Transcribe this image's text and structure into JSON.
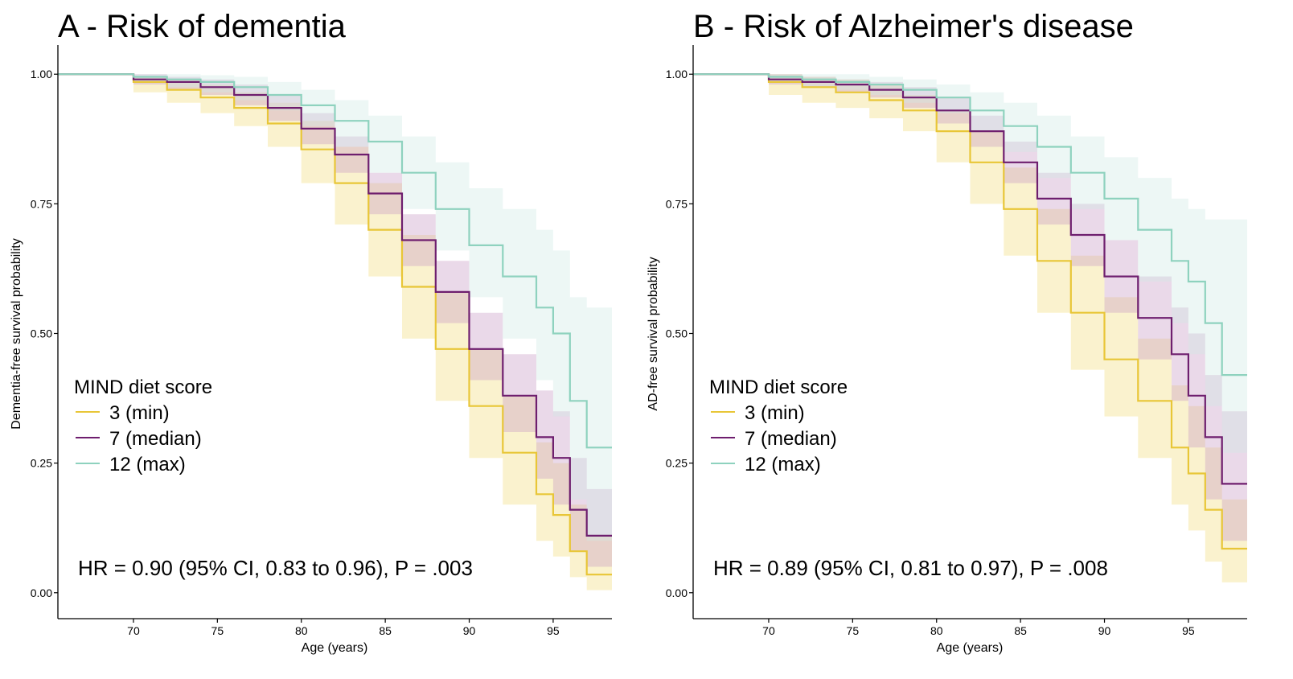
{
  "chart_data": [
    {
      "type": "line",
      "title": "A - Risk of dementia",
      "xlabel": "Age (years)",
      "ylabel": "Dementia-free survival probability",
      "xlim": [
        65.5,
        98.5
      ],
      "ylim": [
        -0.05,
        1.05
      ],
      "xticks": [
        "70",
        "75",
        "80",
        "85",
        "90",
        "95"
      ],
      "yticks": [
        "0.00",
        "0.25",
        "0.50",
        "0.75",
        "1.00"
      ],
      "legend_title": "MIND diet score",
      "annotation": "HR = 0.90 (95% CI, 0.83 to 0.96), P = .003",
      "series": [
        {
          "name": "3 (min)",
          "color": "#E8C637",
          "fill": "#F3DD7E",
          "x": [
            65.5,
            69.7,
            70.0,
            72,
            74,
            76,
            78,
            80,
            82,
            84,
            86,
            88,
            90,
            92,
            94,
            95,
            96,
            97,
            98.5
          ],
          "y": [
            1.0,
            1.0,
            0.985,
            0.97,
            0.955,
            0.935,
            0.905,
            0.855,
            0.79,
            0.7,
            0.59,
            0.47,
            0.36,
            0.27,
            0.19,
            0.15,
            0.08,
            0.035,
            0.035
          ],
          "lo": [
            1.0,
            1.0,
            0.965,
            0.945,
            0.925,
            0.9,
            0.86,
            0.79,
            0.71,
            0.61,
            0.49,
            0.37,
            0.26,
            0.17,
            0.1,
            0.07,
            0.03,
            0.005,
            0.005
          ],
          "hi": [
            1.0,
            1.0,
            0.995,
            0.99,
            0.98,
            0.965,
            0.945,
            0.91,
            0.86,
            0.79,
            0.69,
            0.58,
            0.47,
            0.38,
            0.29,
            0.25,
            0.17,
            0.11,
            0.11
          ]
        },
        {
          "name": "7 (median)",
          "color": "#6E1E6E",
          "fill": "#C79AC4",
          "x": [
            65.5,
            69.7,
            70.0,
            72,
            74,
            76,
            78,
            80,
            82,
            84,
            86,
            88,
            90,
            92,
            94,
            95,
            96,
            97,
            98.5
          ],
          "y": [
            1.0,
            1.0,
            0.99,
            0.985,
            0.975,
            0.96,
            0.935,
            0.895,
            0.845,
            0.77,
            0.68,
            0.58,
            0.47,
            0.38,
            0.3,
            0.26,
            0.16,
            0.11,
            0.11
          ],
          "lo": [
            1.0,
            1.0,
            0.98,
            0.97,
            0.96,
            0.94,
            0.91,
            0.865,
            0.81,
            0.73,
            0.63,
            0.52,
            0.41,
            0.31,
            0.22,
            0.17,
            0.08,
            0.05,
            0.05
          ],
          "hi": [
            1.0,
            1.0,
            1.0,
            0.995,
            0.99,
            0.98,
            0.96,
            0.925,
            0.88,
            0.81,
            0.73,
            0.64,
            0.54,
            0.46,
            0.39,
            0.35,
            0.26,
            0.2,
            0.2
          ]
        },
        {
          "name": "12 (max)",
          "color": "#8ED2BE",
          "fill": "#CFEAE5",
          "x": [
            65.5,
            69.7,
            70.0,
            72,
            74,
            76,
            78,
            80,
            82,
            84,
            86,
            88,
            90,
            92,
            94,
            95,
            96,
            97,
            98.5
          ],
          "y": [
            1.0,
            1.0,
            0.995,
            0.99,
            0.985,
            0.975,
            0.96,
            0.94,
            0.91,
            0.87,
            0.81,
            0.74,
            0.67,
            0.61,
            0.55,
            0.5,
            0.37,
            0.28,
            0.28
          ],
          "lo": [
            1.0,
            1.0,
            0.985,
            0.975,
            0.965,
            0.95,
            0.93,
            0.9,
            0.86,
            0.81,
            0.74,
            0.66,
            0.57,
            0.49,
            0.41,
            0.34,
            0.18,
            0.1,
            0.1
          ],
          "hi": [
            1.0,
            1.0,
            1.0,
            1.0,
            0.998,
            0.995,
            0.985,
            0.97,
            0.95,
            0.92,
            0.88,
            0.83,
            0.78,
            0.74,
            0.7,
            0.66,
            0.57,
            0.55,
            0.55
          ]
        }
      ]
    },
    {
      "type": "line",
      "title": "B - Risk of Alzheimer's disease",
      "xlabel": "Age (years)",
      "ylabel": "AD-free survival probability",
      "xlim": [
        65.5,
        98.5
      ],
      "ylim": [
        -0.05,
        1.05
      ],
      "xticks": [
        "70",
        "75",
        "80",
        "85",
        "90",
        "95"
      ],
      "yticks": [
        "0.00",
        "0.25",
        "0.50",
        "0.75",
        "1.00"
      ],
      "legend_title": "MIND diet score",
      "annotation": "HR = 0.89 (95% CI, 0.81 to 0.97), P = .008",
      "series": [
        {
          "name": "3 (min)",
          "color": "#E8C637",
          "fill": "#F3DD7E",
          "x": [
            65.5,
            69.7,
            70.0,
            72,
            74,
            76,
            78,
            80,
            82,
            84,
            86,
            88,
            90,
            92,
            94,
            95,
            96,
            97,
            98.5
          ],
          "y": [
            1.0,
            1.0,
            0.985,
            0.975,
            0.965,
            0.95,
            0.93,
            0.89,
            0.83,
            0.74,
            0.64,
            0.54,
            0.45,
            0.37,
            0.28,
            0.23,
            0.16,
            0.085,
            0.085
          ],
          "lo": [
            1.0,
            1.0,
            0.96,
            0.945,
            0.935,
            0.915,
            0.89,
            0.83,
            0.75,
            0.65,
            0.54,
            0.43,
            0.34,
            0.26,
            0.17,
            0.12,
            0.06,
            0.02,
            0.02
          ],
          "hi": [
            1.0,
            1.0,
            1.0,
            0.995,
            0.99,
            0.98,
            0.96,
            0.93,
            0.89,
            0.82,
            0.74,
            0.65,
            0.57,
            0.49,
            0.4,
            0.36,
            0.28,
            0.18,
            0.18
          ]
        },
        {
          "name": "7 (median)",
          "color": "#6E1E6E",
          "fill": "#C79AC4",
          "x": [
            65.5,
            69.7,
            70.0,
            72,
            74,
            76,
            78,
            80,
            82,
            84,
            86,
            88,
            90,
            92,
            94,
            95,
            96,
            97,
            98.5
          ],
          "y": [
            1.0,
            1.0,
            0.99,
            0.985,
            0.98,
            0.97,
            0.955,
            0.93,
            0.89,
            0.83,
            0.76,
            0.69,
            0.61,
            0.53,
            0.46,
            0.38,
            0.3,
            0.21,
            0.21
          ],
          "lo": [
            1.0,
            1.0,
            0.98,
            0.975,
            0.965,
            0.955,
            0.935,
            0.905,
            0.86,
            0.79,
            0.71,
            0.63,
            0.54,
            0.45,
            0.37,
            0.28,
            0.18,
            0.1,
            0.1
          ],
          "hi": [
            1.0,
            1.0,
            1.0,
            0.995,
            0.99,
            0.985,
            0.975,
            0.955,
            0.92,
            0.87,
            0.81,
            0.75,
            0.68,
            0.61,
            0.55,
            0.5,
            0.42,
            0.35,
            0.35
          ]
        },
        {
          "name": "12 (max)",
          "color": "#8ED2BE",
          "fill": "#CFEAE5",
          "x": [
            65.5,
            69.7,
            70.0,
            72,
            74,
            76,
            78,
            80,
            82,
            84,
            86,
            88,
            90,
            92,
            94,
            95,
            96,
            97,
            98.5
          ],
          "y": [
            1.0,
            1.0,
            0.995,
            0.99,
            0.985,
            0.98,
            0.97,
            0.955,
            0.93,
            0.9,
            0.86,
            0.81,
            0.76,
            0.7,
            0.64,
            0.6,
            0.52,
            0.42,
            0.42
          ],
          "lo": [
            1.0,
            1.0,
            0.985,
            0.975,
            0.97,
            0.96,
            0.945,
            0.925,
            0.89,
            0.85,
            0.8,
            0.74,
            0.68,
            0.6,
            0.52,
            0.46,
            0.36,
            0.27,
            0.27
          ],
          "hi": [
            1.0,
            1.0,
            1.0,
            1.0,
            1.0,
            0.995,
            0.99,
            0.98,
            0.965,
            0.945,
            0.92,
            0.88,
            0.84,
            0.8,
            0.76,
            0.74,
            0.72,
            0.72,
            0.72
          ]
        }
      ]
    }
  ]
}
